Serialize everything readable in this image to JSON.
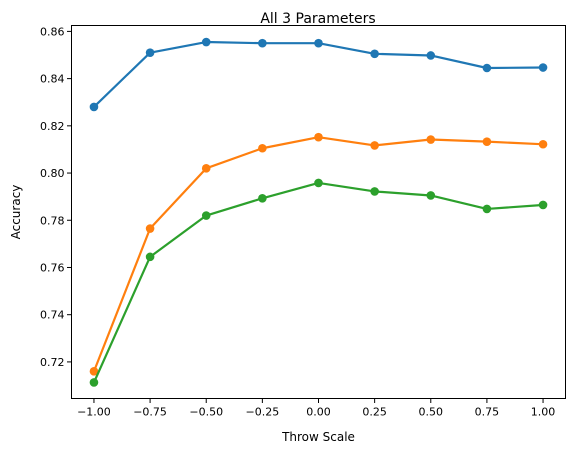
{
  "chart_data": {
    "type": "line",
    "title": "All 3 Parameters",
    "xlabel": "Throw Scale",
    "ylabel": "Accuracy",
    "x": [
      -1.0,
      -0.75,
      -0.5,
      -0.25,
      0.0,
      0.25,
      0.5,
      0.75,
      1.0
    ],
    "xlim": [
      -1.1,
      1.1
    ],
    "ylim": [
      0.7045,
      0.8625
    ],
    "xticks": [
      -1.0,
      -0.75,
      -0.5,
      -0.25,
      0.0,
      0.25,
      0.5,
      0.75,
      1.0
    ],
    "xtick_labels": [
      "−1.00",
      "−0.75",
      "−0.50",
      "−0.25",
      "0.00",
      "0.25",
      "0.50",
      "0.75",
      "1.00"
    ],
    "yticks": [
      0.72,
      0.74,
      0.76,
      0.78,
      0.8,
      0.82,
      0.84,
      0.86
    ],
    "ytick_labels": [
      "0.72",
      "0.74",
      "0.76",
      "0.78",
      "0.80",
      "0.82",
      "0.84",
      "0.86"
    ],
    "grid": false,
    "legend": false,
    "series": [
      {
        "color": "#1f77b4",
        "marker": "circle",
        "values": [
          0.828,
          0.851,
          0.8555,
          0.855,
          0.855,
          0.8505,
          0.8498,
          0.8445,
          0.8447
        ]
      },
      {
        "color": "#ff7f0e",
        "marker": "circle",
        "values": [
          0.716,
          0.7765,
          0.802,
          0.8105,
          0.8152,
          0.8117,
          0.8142,
          0.8133,
          0.8122
        ]
      },
      {
        "color": "#2ca02c",
        "marker": "circle",
        "values": [
          0.7113,
          0.7645,
          0.782,
          0.7893,
          0.7958,
          0.7922,
          0.7905,
          0.7848,
          0.7865
        ]
      }
    ]
  }
}
